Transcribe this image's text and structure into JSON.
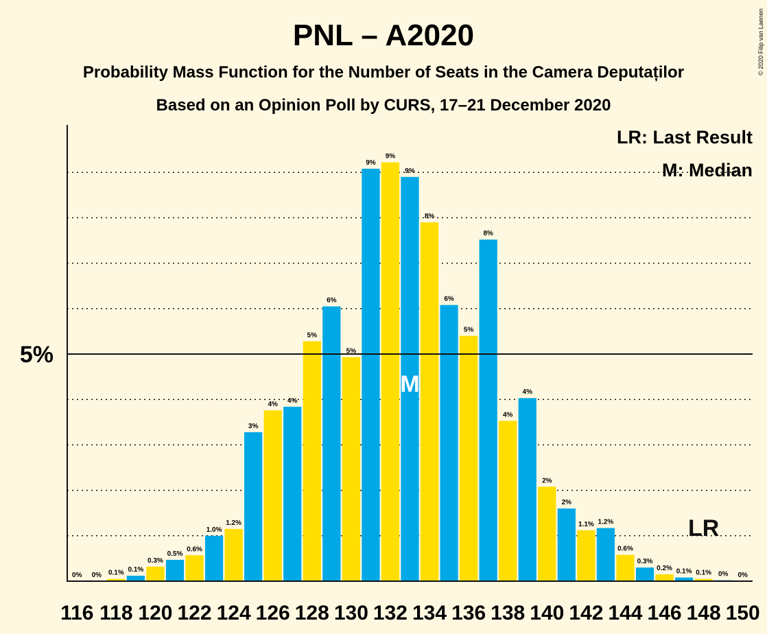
{
  "title": "PNL – A2020",
  "subtitle": "Probability Mass Function for the Number of Seats in the Camera Deputaților",
  "subtitle2": "Based on an Opinion Poll by CURS, 17–21 December 2020",
  "copyright": "© 2020 Filip van Laenen",
  "legend": {
    "lr": "LR: Last Result",
    "median": "M: Median"
  },
  "markers": {
    "median_label": "M",
    "median_seat": 133,
    "lr_label": "LR",
    "lr_seat": 148
  },
  "colors": {
    "blue": "#00a9e6",
    "yellow": "#ffde00",
    "background": "#fff8e1",
    "axis": "#111111"
  },
  "chart_data": {
    "type": "bar",
    "x": [
      116,
      117,
      118,
      119,
      120,
      121,
      122,
      123,
      124,
      125,
      126,
      127,
      128,
      129,
      130,
      131,
      132,
      133,
      134,
      135,
      136,
      137,
      138,
      139,
      140,
      141,
      142,
      143,
      144,
      145,
      146,
      147,
      148,
      149,
      150
    ],
    "values": [
      0.0,
      0.0,
      0.05,
      0.12,
      0.32,
      0.47,
      0.57,
      1.0,
      1.15,
      3.28,
      3.76,
      3.84,
      5.28,
      6.05,
      4.93,
      9.08,
      9.22,
      8.9,
      7.9,
      6.08,
      5.4,
      7.52,
      3.53,
      4.03,
      2.08,
      1.6,
      1.12,
      1.17,
      0.58,
      0.3,
      0.15,
      0.08,
      0.05,
      0.02,
      0.0
    ],
    "data_labels": [
      "0%",
      "0%",
      "0.1%",
      "0.1%",
      "0.3%",
      "0.5%",
      "0.6%",
      "1.0%",
      "1.2%",
      "3%",
      "4%",
      "4%",
      "5%",
      "6%",
      "5%",
      "9%",
      "9%",
      "9%",
      "8%",
      "6%",
      "5%",
      "8%",
      "4%",
      "4%",
      "2%",
      "2%",
      "1.1%",
      "1.2%",
      "0.6%",
      "0.3%",
      "0.2%",
      "0.1%",
      "0.1%",
      "0%",
      "0%"
    ],
    "xtick_labels": [
      "116",
      "118",
      "120",
      "122",
      "124",
      "126",
      "128",
      "130",
      "132",
      "134",
      "136",
      "138",
      "140",
      "142",
      "144",
      "146",
      "148",
      "150"
    ],
    "ytick_label": "5%",
    "ytick_value": 5,
    "ylim": [
      0,
      10
    ],
    "gridlines": [
      1,
      2,
      3,
      4,
      6,
      7,
      8,
      9
    ],
    "grid": true,
    "legend_position": "top-right",
    "xlabel": "",
    "ylabel": ""
  }
}
